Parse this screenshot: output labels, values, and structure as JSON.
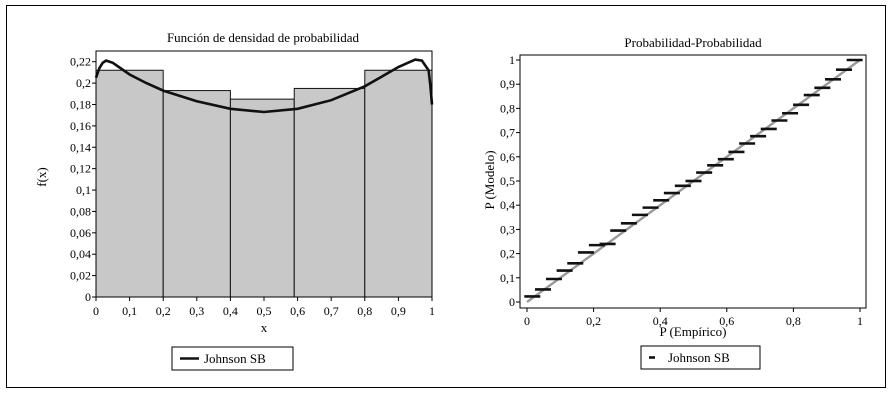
{
  "chart_data": [
    {
      "type": "bar",
      "title": "Función de densidad de probabilidad",
      "xlabel": "x",
      "ylabel": "f(x)",
      "xlim": [
        0,
        1
      ],
      "ylim": [
        0,
        0.23
      ],
      "x_ticks": [
        0,
        0.1,
        0.2,
        0.3,
        0.4,
        0.5,
        0.6,
        0.7,
        0.8,
        0.9,
        1
      ],
      "x_tick_labels": [
        "0",
        "0,1",
        "0,2",
        "0,3",
        "0,4",
        "0,5",
        "0,6",
        "0,7",
        "0,8",
        "0,9",
        "1"
      ],
      "y_ticks": [
        0,
        0.02,
        0.04,
        0.06,
        0.08,
        0.1,
        0.12,
        0.14,
        0.16,
        0.18,
        0.2,
        0.22
      ],
      "y_tick_labels": [
        "0",
        "0,02",
        "0,04",
        "0,06",
        "0,08",
        "0,1",
        "0,12",
        "0,14",
        "0,16",
        "0,18",
        "0,2",
        "0,22"
      ],
      "bins": [
        {
          "x0": 0,
          "x1": 0.2,
          "value": 0.212
        },
        {
          "x0": 0.2,
          "x1": 0.4,
          "value": 0.193
        },
        {
          "x0": 0.4,
          "x1": 0.59,
          "value": 0.185
        },
        {
          "x0": 0.59,
          "x1": 0.8,
          "value": 0.195
        },
        {
          "x0": 0.8,
          "x1": 1,
          "value": 0.212
        }
      ],
      "series": [
        {
          "name": "Johnson SB",
          "type": "line",
          "x": [
            0,
            0.01,
            0.02,
            0.03,
            0.05,
            0.1,
            0.15,
            0.2,
            0.3,
            0.4,
            0.5,
            0.6,
            0.7,
            0.8,
            0.85,
            0.9,
            0.95,
            0.97,
            0.99,
            0.995,
            1
          ],
          "y": [
            0.205,
            0.214,
            0.219,
            0.221,
            0.219,
            0.208,
            0.2,
            0.193,
            0.183,
            0.176,
            0.173,
            0.176,
            0.184,
            0.197,
            0.206,
            0.215,
            0.222,
            0.221,
            0.212,
            0.198,
            0.18
          ]
        }
      ],
      "legend": {
        "position": "bottom",
        "label": "Johnson SB"
      },
      "bar_color": "#c8c8c8",
      "line_color": "#111111"
    },
    {
      "type": "scatter",
      "title": "Probabilidad-Probabilidad",
      "xlabel": "P (Empírico)",
      "ylabel": "P (Modelo)",
      "xlim": [
        0,
        1
      ],
      "ylim": [
        0,
        1
      ],
      "x_ticks": [
        0,
        0.2,
        0.4,
        0.6,
        0.8,
        1
      ],
      "x_tick_labels": [
        "0",
        "0,2",
        "0,4",
        "0,6",
        "0,8",
        "1"
      ],
      "y_ticks": [
        0,
        0.1,
        0.2,
        0.3,
        0.4,
        0.5,
        0.6,
        0.7,
        0.8,
        0.9,
        1
      ],
      "y_tick_labels": [
        "0",
        "0,1",
        "0,2",
        "0,3",
        "0,4",
        "0,5",
        "0,6",
        "0,7",
        "0,8",
        "0,9",
        "1"
      ],
      "reference_line": {
        "x": [
          0,
          1
        ],
        "y": [
          0,
          1
        ],
        "color": "#999999"
      },
      "series": [
        {
          "name": "Johnson SB",
          "x": [
            0.016,
            0.048,
            0.081,
            0.113,
            0.145,
            0.177,
            0.21,
            0.242,
            0.274,
            0.306,
            0.339,
            0.371,
            0.403,
            0.435,
            0.468,
            0.5,
            0.532,
            0.565,
            0.597,
            0.629,
            0.661,
            0.694,
            0.726,
            0.758,
            0.79,
            0.823,
            0.855,
            0.887,
            0.919,
            0.952,
            0.984
          ],
          "y": [
            0.023,
            0.052,
            0.095,
            0.13,
            0.16,
            0.205,
            0.235,
            0.24,
            0.295,
            0.325,
            0.36,
            0.39,
            0.42,
            0.45,
            0.48,
            0.5,
            0.535,
            0.565,
            0.59,
            0.62,
            0.655,
            0.685,
            0.715,
            0.75,
            0.78,
            0.815,
            0.855,
            0.885,
            0.92,
            0.96,
            1.0
          ]
        }
      ],
      "legend": {
        "position": "bottom",
        "label": "Johnson SB"
      },
      "marker_color": "#111111"
    }
  ]
}
